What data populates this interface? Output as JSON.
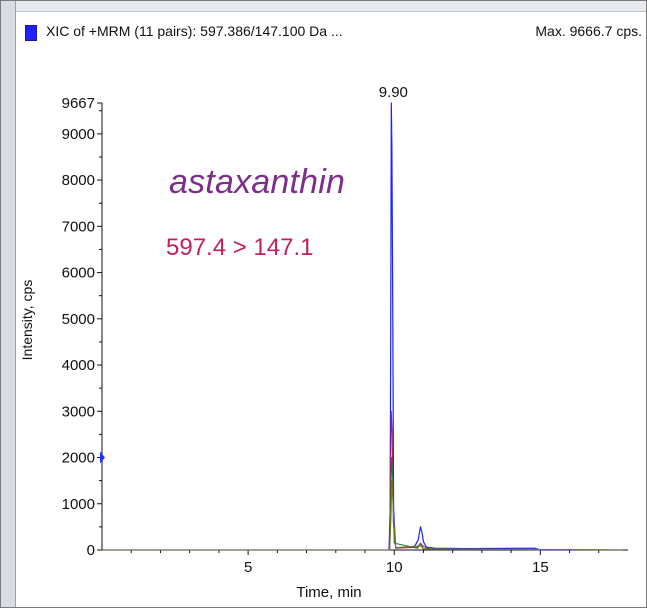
{
  "header": {
    "xic_title": "XIC of +MRM (11 pairs): 597.386/147.100 Da ...",
    "max_label": "Max. 9666.7 cps."
  },
  "annotations": {
    "compound_name": "astaxanthin",
    "transition": "597.4 > 147.1"
  },
  "colors": {
    "accent_blue": "#1f22ff",
    "compound_name": "#7d2e8c",
    "transition": "#c21f5f"
  },
  "chart_data": {
    "type": "line",
    "title": "",
    "xlabel": "Time, min",
    "ylabel": "Intensity, cps",
    "xlim": [
      0,
      18
    ],
    "ylim": [
      0,
      9667
    ],
    "x_ticks": [
      5,
      10,
      15
    ],
    "y_ticks": [
      0,
      1000,
      2000,
      3000,
      4000,
      5000,
      6000,
      7000,
      8000,
      9000,
      9667
    ],
    "grid": false,
    "peak_label": {
      "x": 9.9,
      "y": 9667,
      "text": "9.90"
    },
    "series": [
      {
        "color": "#1f22ff",
        "x": [
          0,
          9.82,
          9.86,
          9.88,
          9.9,
          9.92,
          9.95,
          9.98,
          10.05,
          10.7,
          10.82,
          10.9,
          10.95,
          11.0,
          11.1,
          11.4,
          12.5,
          14.8,
          15.0,
          17.8
        ],
        "y": [
          0,
          0,
          800,
          4500,
          9667,
          8700,
          5000,
          900,
          50,
          80,
          220,
          500,
          380,
          180,
          60,
          40,
          30,
          40,
          0,
          0
        ]
      },
      {
        "color": "#a8235a",
        "x": [
          0,
          9.83,
          9.87,
          9.9,
          9.93,
          9.97,
          10.05,
          10.8,
          10.9,
          11.0,
          11.2,
          17.8
        ],
        "y": [
          0,
          0,
          1200,
          3000,
          2500,
          600,
          40,
          60,
          150,
          80,
          20,
          0
        ]
      },
      {
        "color": "#1e7a2e",
        "x": [
          0,
          9.84,
          9.88,
          9.91,
          9.95,
          10.0,
          10.8,
          10.9,
          11.0,
          17.8
        ],
        "y": [
          0,
          0,
          900,
          2000,
          1500,
          150,
          40,
          120,
          30,
          0
        ]
      },
      {
        "color": "#7a7a1a",
        "x": [
          0,
          9.85,
          9.89,
          9.92,
          9.96,
          10.05,
          10.9,
          11.0,
          17.8
        ],
        "y": [
          0,
          0,
          700,
          1500,
          900,
          50,
          90,
          20,
          0
        ]
      }
    ]
  }
}
